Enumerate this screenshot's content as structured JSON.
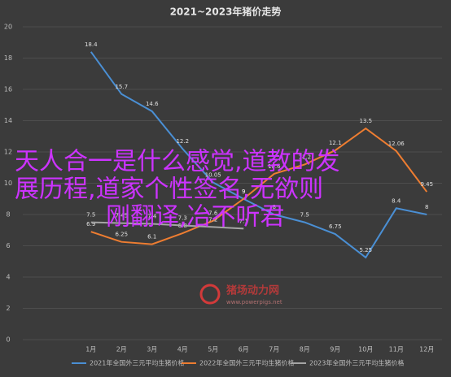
{
  "chart_data": {
    "type": "line",
    "title": "2021~2023年猪价走势",
    "categories": [
      "1月",
      "2月",
      "3月",
      "4月",
      "5月",
      "6月",
      "7月",
      "8月",
      "9月",
      "10月",
      "11月",
      "12月"
    ],
    "series": [
      {
        "name": "2021年全国外三元平均生猪价格",
        "color": "#4a8fd4",
        "values": [
          18.4,
          15.7,
          14.6,
          12.2,
          10.05,
          9,
          8,
          7.5,
          6.75,
          5.25,
          8.4,
          8
        ]
      },
      {
        "name": "2022年全国外三元平均生猪价格",
        "color": "#ee7d31",
        "values": [
          6.9,
          6.25,
          6.1,
          6.8,
          7.6,
          9,
          10.6,
          11.2,
          12.1,
          13.5,
          12.06,
          9.45
        ]
      },
      {
        "name": "2023年全国外三元平均生猪价格",
        "color": "#a5a5a5",
        "values": [
          7.5,
          7.45,
          7.4,
          7.3,
          7.2,
          7.1,
          null,
          null,
          null,
          null,
          null,
          null
        ]
      }
    ],
    "ylim": [
      0,
      20
    ],
    "yticks": [
      0,
      2,
      4,
      6,
      8,
      10,
      12,
      14,
      16,
      18,
      20
    ],
    "grid": true,
    "overlay_lines": [
      "天人合一是什么感觉,道教的发",
      "展历程,道家个性签名,无欲则",
      "刚翻译,冶不听君"
    ],
    "watermark": "猪场动力网",
    "watermark_url": "www.powerpigs.net"
  }
}
